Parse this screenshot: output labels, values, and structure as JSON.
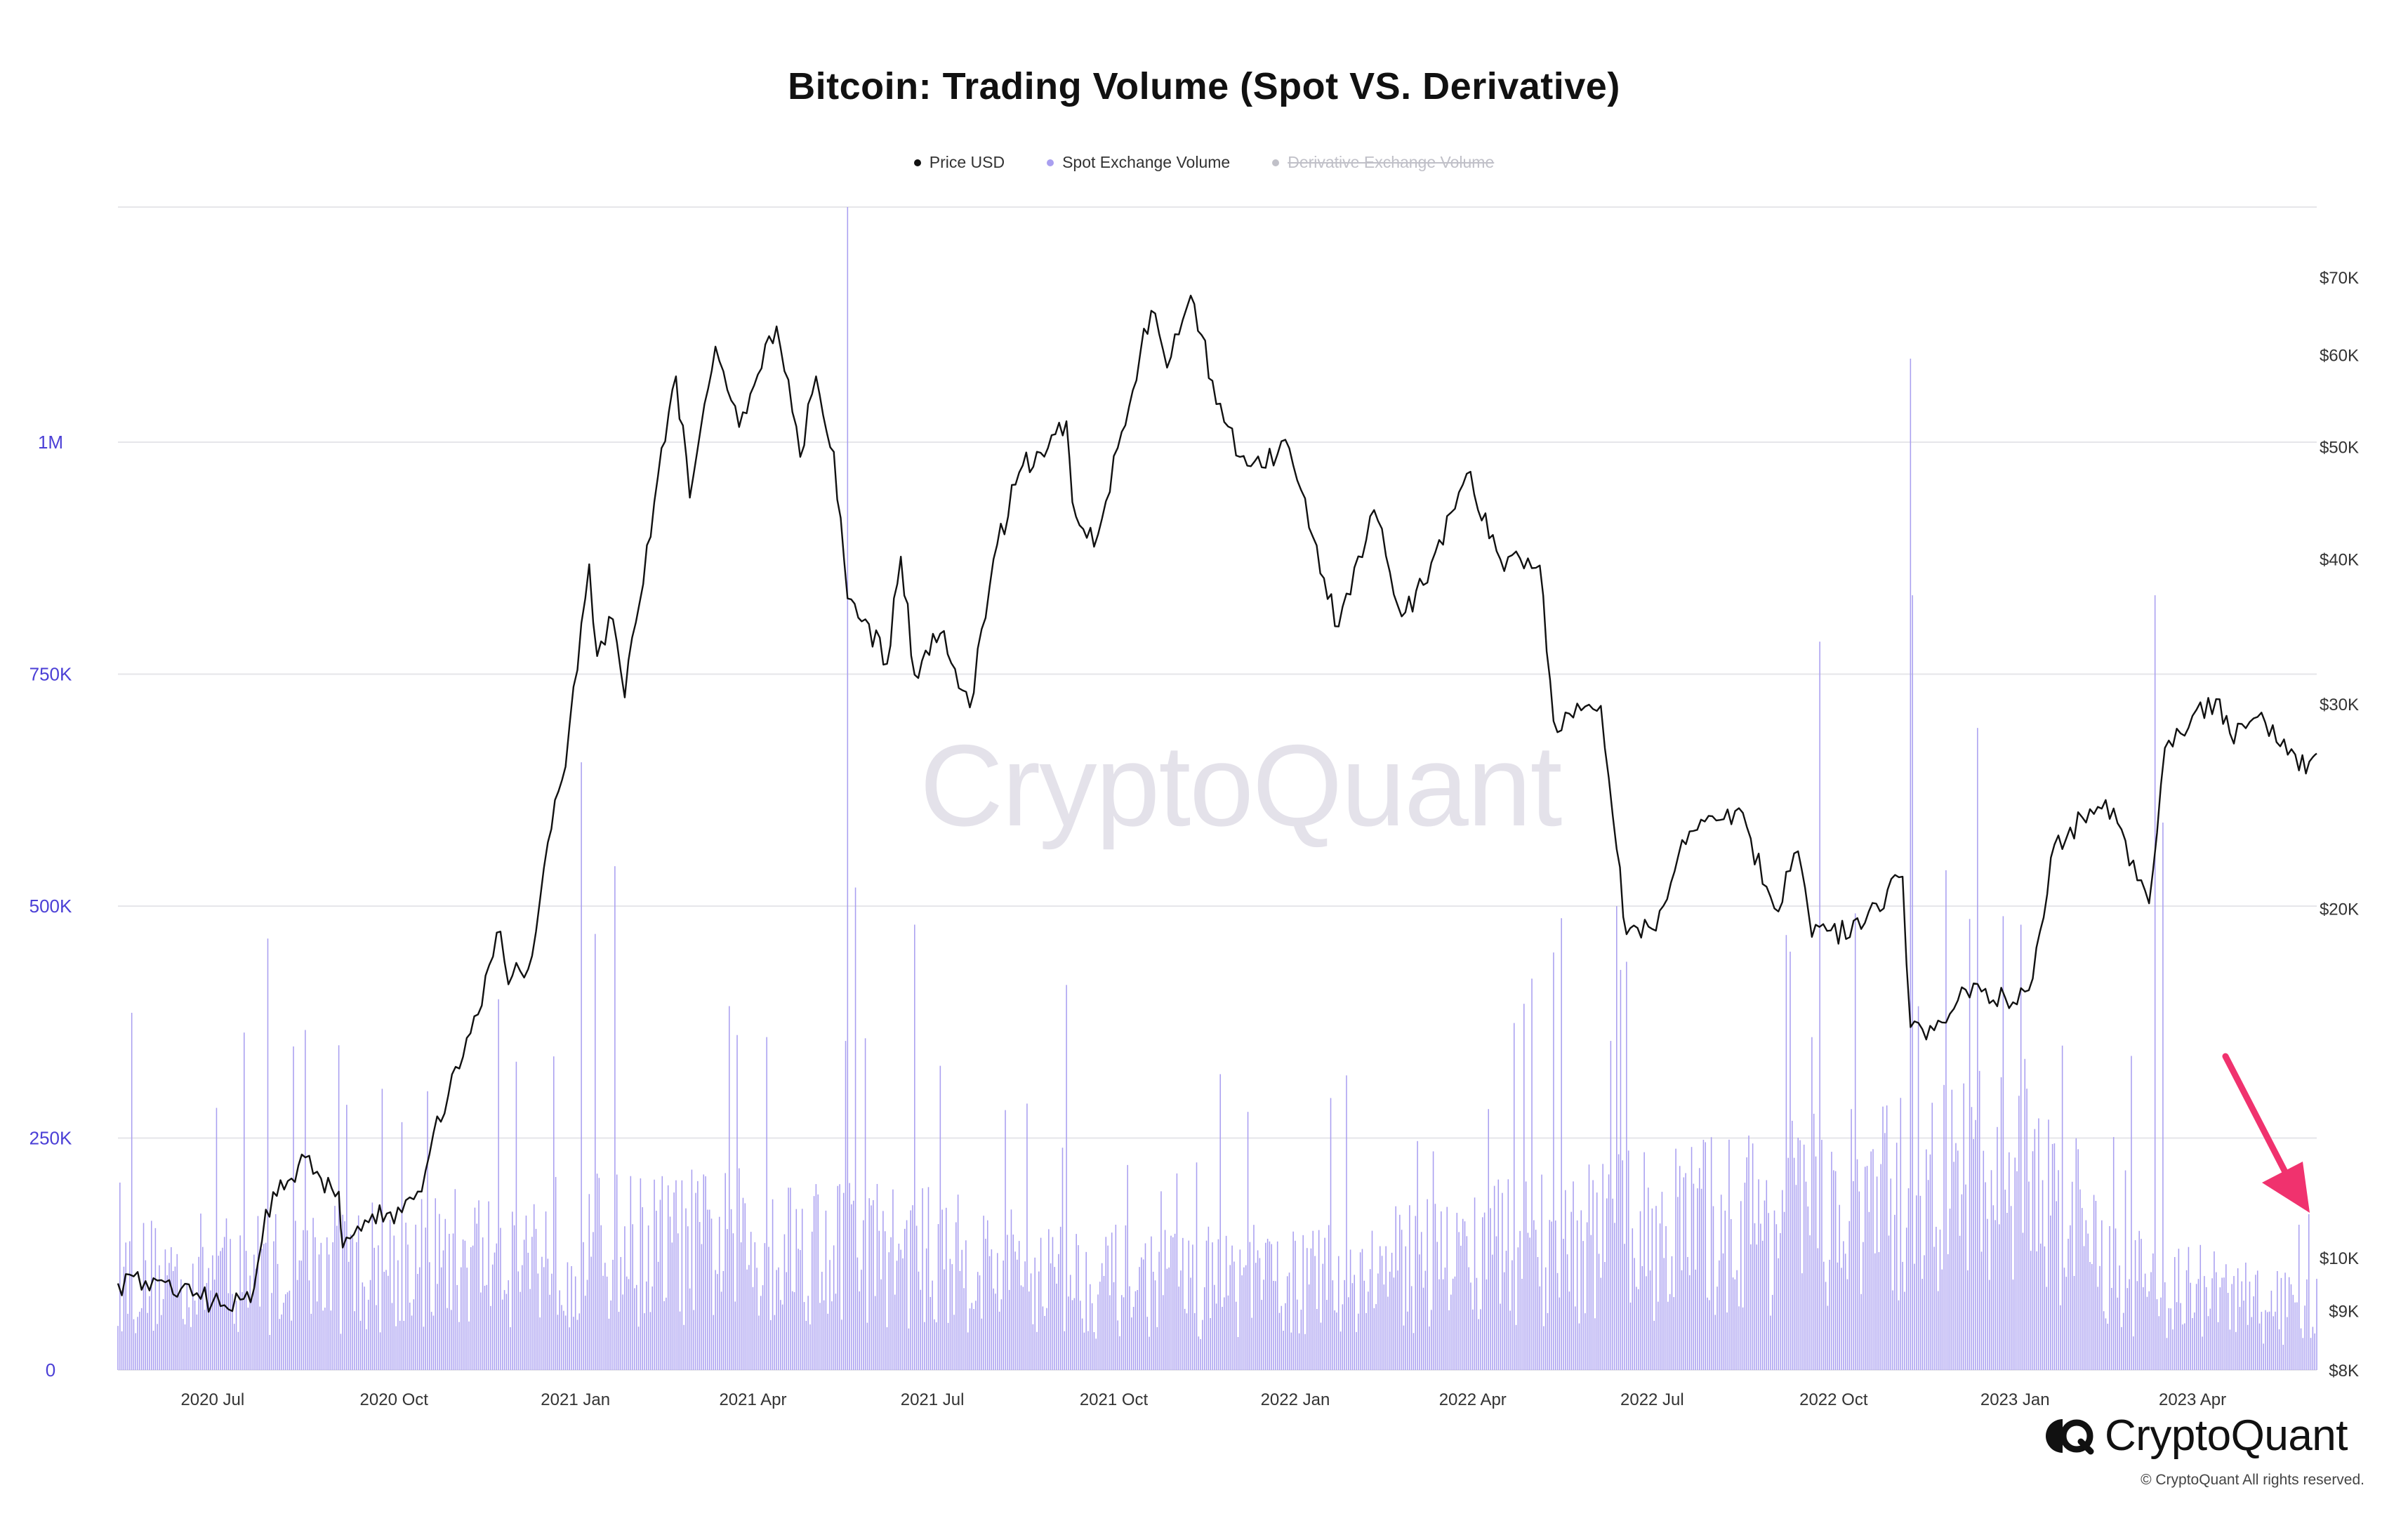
{
  "title": "Bitcoin: Trading Volume (Spot VS. Derivative)",
  "watermark": "CryptoQuant",
  "logo_text": "CryptoQuant",
  "copyright": "© CryptoQuant All rights reserved.",
  "colors": {
    "price": "#111111",
    "volume": "#a99ff0",
    "legend_off": "#c0c0c8",
    "left_axis": "#4b3fd6",
    "arrow": "#f0326e",
    "grid": "#e6e6ea"
  },
  "legend": [
    {
      "label": "Price USD",
      "color": "#111111",
      "enabled": true
    },
    {
      "label": "Spot Exchange Volume",
      "color": "#a99ff0",
      "enabled": true
    },
    {
      "label": "Derivative Exchange Volume",
      "color": "#c0c0c8",
      "enabled": false
    }
  ],
  "chart_data": {
    "type": "line",
    "title": "Bitcoin: Trading Volume (Spot VS. Derivative)",
    "x_range": [
      "2020-05-14",
      "2023-06-03"
    ],
    "x_ticks": [
      {
        "date": "2020-07-01",
        "label": "2020 Jul"
      },
      {
        "date": "2020-10-01",
        "label": "2020 Oct"
      },
      {
        "date": "2021-01-01",
        "label": "2021 Jan"
      },
      {
        "date": "2021-04-01",
        "label": "2021 Apr"
      },
      {
        "date": "2021-07-01",
        "label": "2021 Jul"
      },
      {
        "date": "2021-10-01",
        "label": "2021 Oct"
      },
      {
        "date": "2022-01-01",
        "label": "2022 Jan"
      },
      {
        "date": "2022-04-01",
        "label": "2022 Apr"
      },
      {
        "date": "2022-07-01",
        "label": "2022 Jul"
      },
      {
        "date": "2022-10-01",
        "label": "2022 Oct"
      },
      {
        "date": "2023-01-01",
        "label": "2023 Jan"
      },
      {
        "date": "2023-04-01",
        "label": "2023 Apr"
      }
    ],
    "left_axis": {
      "min": 0,
      "max": 1000000,
      "ticks": [
        {
          "value": 0,
          "label": "0"
        },
        {
          "value": 250000,
          "label": "250K"
        },
        {
          "value": 500000,
          "label": "500K"
        },
        {
          "value": 750000,
          "label": "750K"
        },
        {
          "value": 1000000,
          "label": "1M"
        }
      ]
    },
    "right_axis": {
      "scale": "log",
      "min": 8000,
      "max": 70000,
      "ticks": [
        {
          "value": 8000,
          "label": "$8K"
        },
        {
          "value": 9000,
          "label": "$9K"
        },
        {
          "value": 10000,
          "label": "$10K"
        },
        {
          "value": 20000,
          "label": "$20K"
        },
        {
          "value": 30000,
          "label": "$30K"
        },
        {
          "value": 40000,
          "label": "$40K"
        },
        {
          "value": 50000,
          "label": "$50K"
        },
        {
          "value": 60000,
          "label": "$60K"
        },
        {
          "value": 70000,
          "label": "$70K"
        }
      ]
    },
    "grid": true,
    "legend_position": "top-center",
    "series": [
      {
        "name": "Price USD",
        "type": "line",
        "axis": "right",
        "points": [
          [
            "2020-05-14",
            9500
          ],
          [
            "2020-06-01",
            9600
          ],
          [
            "2020-06-15",
            9400
          ],
          [
            "2020-07-01",
            9150
          ],
          [
            "2020-07-15",
            9200
          ],
          [
            "2020-07-22",
            9400
          ],
          [
            "2020-07-28",
            11000
          ],
          [
            "2020-08-10",
            11700
          ],
          [
            "2020-08-17",
            12200
          ],
          [
            "2020-08-25",
            11700
          ],
          [
            "2020-09-03",
            11400
          ],
          [
            "2020-09-05",
            10200
          ],
          [
            "2020-09-20",
            10900
          ],
          [
            "2020-10-01",
            10700
          ],
          [
            "2020-10-15",
            11400
          ],
          [
            "2020-10-21",
            12800
          ],
          [
            "2020-11-05",
            14900
          ],
          [
            "2020-11-24",
            19100
          ],
          [
            "2020-11-28",
            17200
          ],
          [
            "2020-12-10",
            18200
          ],
          [
            "2020-12-18",
            22800
          ],
          [
            "2020-12-27",
            26500
          ],
          [
            "2021-01-08",
            39600
          ],
          [
            "2021-01-12",
            33000
          ],
          [
            "2021-01-20",
            35500
          ],
          [
            "2021-01-26",
            30400
          ],
          [
            "2021-02-10",
            44800
          ],
          [
            "2021-02-21",
            57500
          ],
          [
            "2021-02-28",
            45200
          ],
          [
            "2021-03-13",
            61000
          ],
          [
            "2021-03-25",
            52000
          ],
          [
            "2021-04-13",
            63500
          ],
          [
            "2021-04-25",
            49000
          ],
          [
            "2021-05-03",
            57500
          ],
          [
            "2021-05-12",
            49500
          ],
          [
            "2021-05-19",
            37000
          ],
          [
            "2021-05-28",
            35500
          ],
          [
            "2021-06-08",
            32500
          ],
          [
            "2021-06-15",
            40200
          ],
          [
            "2021-06-22",
            31800
          ],
          [
            "2021-07-05",
            34500
          ],
          [
            "2021-07-20",
            29800
          ],
          [
            "2021-08-01",
            40000
          ],
          [
            "2021-08-14",
            47500
          ],
          [
            "2021-08-23",
            49500
          ],
          [
            "2021-09-07",
            52600
          ],
          [
            "2021-09-10",
            44800
          ],
          [
            "2021-09-21",
            41000
          ],
          [
            "2021-10-05",
            51500
          ],
          [
            "2021-10-20",
            65500
          ],
          [
            "2021-10-28",
            58500
          ],
          [
            "2021-11-09",
            67500
          ],
          [
            "2021-11-20",
            57000
          ],
          [
            "2021-12-04",
            49000
          ],
          [
            "2021-12-15",
            48000
          ],
          [
            "2021-12-27",
            50700
          ],
          [
            "2022-01-10",
            41800
          ],
          [
            "2022-01-23",
            35000
          ],
          [
            "2022-02-10",
            44100
          ],
          [
            "2022-02-24",
            35700
          ],
          [
            "2022-03-07",
            38000
          ],
          [
            "2022-03-29",
            47400
          ],
          [
            "2022-04-15",
            40000
          ],
          [
            "2022-05-05",
            39500
          ],
          [
            "2022-05-12",
            29000
          ],
          [
            "2022-06-05",
            29900
          ],
          [
            "2022-06-13",
            22500
          ],
          [
            "2022-06-18",
            19000
          ],
          [
            "2022-07-01",
            19200
          ],
          [
            "2022-07-20",
            23300
          ],
          [
            "2022-08-14",
            24400
          ],
          [
            "2022-09-01",
            20000
          ],
          [
            "2022-09-13",
            22400
          ],
          [
            "2022-09-20",
            18900
          ],
          [
            "2022-10-15",
            19200
          ],
          [
            "2022-11-05",
            21300
          ],
          [
            "2022-11-09",
            15800
          ],
          [
            "2022-11-21",
            15700
          ],
          [
            "2022-12-05",
            17100
          ],
          [
            "2022-12-31",
            16600
          ],
          [
            "2023-01-10",
            17400
          ],
          [
            "2023-01-21",
            22700
          ],
          [
            "2023-02-16",
            24800
          ],
          [
            "2023-03-10",
            20200
          ],
          [
            "2023-03-18",
            27500
          ],
          [
            "2023-04-13",
            30300
          ],
          [
            "2023-04-20",
            28300
          ],
          [
            "2023-05-06",
            29500
          ],
          [
            "2023-05-25",
            26300
          ],
          [
            "2023-06-01",
            27000
          ],
          [
            "2023-06-03",
            27200
          ]
        ]
      },
      {
        "name": "Spot Exchange Volume",
        "type": "bar",
        "axis": "left",
        "start": "2020-05-14",
        "end": "2023-06-03",
        "baseline": [
          [
            0,
            100000
          ],
          [
            0.1,
            110000
          ],
          [
            0.2,
            130000
          ],
          [
            0.32,
            135000
          ],
          [
            0.45,
            95000
          ],
          [
            0.55,
            95000
          ],
          [
            0.62,
            125000
          ],
          [
            0.7,
            150000
          ],
          [
            0.8,
            175000
          ],
          [
            0.87,
            210000
          ],
          [
            0.91,
            100000
          ],
          [
            1,
            60000
          ]
        ],
        "spikes": [
          [
            "2020-05-21",
            385000
          ],
          [
            "2020-07-29",
            465000
          ],
          [
            "2020-09-03",
            350000
          ],
          [
            "2021-01-04",
            655000
          ],
          [
            "2021-01-11",
            470000
          ],
          [
            "2021-01-21",
            543000
          ],
          [
            "2021-05-19",
            1350000
          ],
          [
            "2021-05-23",
            520000
          ],
          [
            "2021-06-22",
            480000
          ],
          [
            "2021-09-07",
            415000
          ],
          [
            "2022-05-12",
            450000
          ],
          [
            "2022-06-13",
            500000
          ],
          [
            "2022-06-18",
            440000
          ],
          [
            "2022-09-24",
            785000
          ],
          [
            "2022-11-09",
            1090000
          ],
          [
            "2022-11-10",
            835000
          ],
          [
            "2023-03-13",
            835000
          ],
          [
            "2023-03-17",
            590000
          ]
        ]
      },
      {
        "name": "Derivative Exchange Volume",
        "hidden": true
      }
    ]
  }
}
